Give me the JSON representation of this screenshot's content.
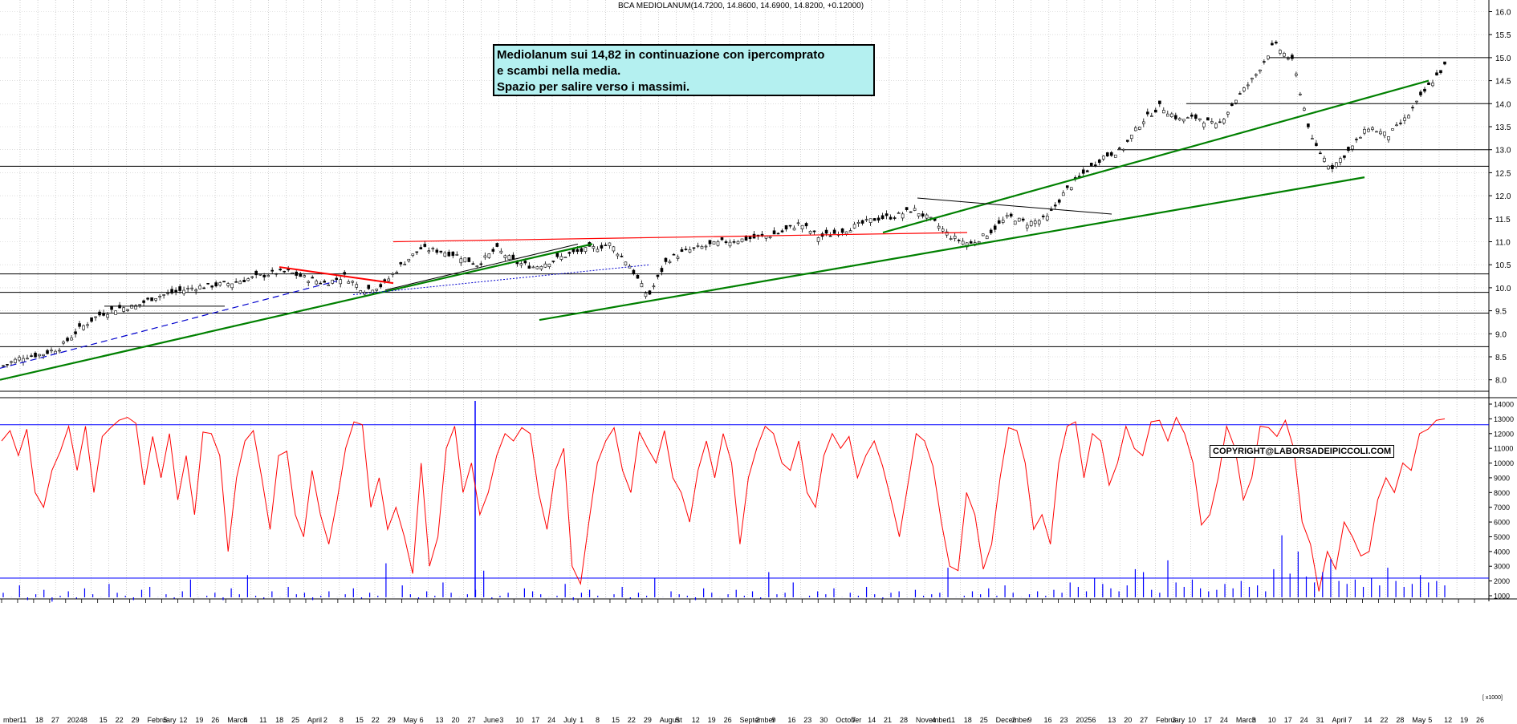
{
  "header": {
    "title": "BCA MEDIOLANUM(14.7200, 14.8600, 14.6900, 14.8200, +0.12000)"
  },
  "annotation": {
    "line1": "Mediolanum sui 14,82 in continuazione con ipercomprato",
    "line2": "e scambi nella media.",
    "line3": "Spazio per salire verso i massimi."
  },
  "copyright": "COPYRIGHT@LABORSADEIPICCOLI.COM",
  "colors": {
    "candle": "#000000",
    "trend_green": "#008000",
    "trend_red": "#ff0000",
    "trend_blue": "#0000cc",
    "oscillator": "#ff0000",
    "volume": "#0000ff",
    "grid": "#999999"
  },
  "chart_data": [
    {
      "type": "candlestick",
      "title": "BCA MEDIOLANUM",
      "ylim": [
        7.5,
        16.2
      ],
      "y_ticks": [
        "16.0",
        "15.5",
        "15.0",
        "14.5",
        "14.0",
        "13.5",
        "13.0",
        "12.5",
        "12.0",
        "11.5",
        "11.0",
        "10.5",
        "10.0",
        "9.5",
        "9.0",
        "8.5",
        "8.0"
      ],
      "last_bar": {
        "open": 14.72,
        "high": 14.86,
        "low": 14.69,
        "close": 14.82,
        "change": 0.12
      },
      "horizontal_levels": [
        15.0,
        14.0,
        13.0,
        12.64,
        10.3,
        9.9,
        9.45,
        8.72,
        7.75
      ],
      "weekly_closes": [
        8.3,
        8.5,
        8.55,
        8.7,
        9.1,
        9.4,
        9.55,
        9.6,
        9.8,
        9.9,
        10.0,
        10.05,
        10.1,
        10.2,
        10.3,
        10.35,
        10.2,
        10.1,
        10.25,
        9.95,
        10.05,
        10.5,
        10.85,
        10.8,
        10.7,
        10.5,
        10.85,
        10.55,
        10.45,
        10.6,
        10.75,
        10.85,
        10.95,
        10.5,
        9.8,
        10.6,
        10.8,
        10.9,
        11.0,
        11.05,
        11.1,
        11.2,
        11.4,
        11.1,
        11.2,
        11.35,
        11.5,
        11.55,
        11.7,
        11.45,
        11.1,
        10.95,
        11.2,
        11.55,
        11.4,
        11.5,
        12.1,
        12.5,
        12.85,
        13.0,
        13.6,
        13.95,
        13.65,
        13.7,
        13.5,
        14.1,
        14.6,
        15.3,
        14.9,
        13.2,
        12.6,
        13.0,
        13.5,
        13.3,
        13.7,
        14.3,
        14.82
      ],
      "trendlines": [
        {
          "color": "green",
          "from": [
            "Nov 2023",
            8.0
          ],
          "to": [
            "Aug 2024",
            10.95
          ]
        },
        {
          "color": "green",
          "from": [
            "Aug 2024",
            9.3
          ],
          "to": [
            "Apr 2025",
            12.4
          ]
        },
        {
          "color": "green",
          "from": [
            "Dec 2024",
            11.2
          ],
          "to": [
            "Apr 2025",
            14.5
          ]
        },
        {
          "color": "red",
          "from": [
            "May 2024",
            11.0
          ],
          "to": [
            "Dec 2024",
            11.2
          ]
        },
        {
          "color": "red",
          "from": [
            "Mar 2024",
            10.45
          ],
          "to": [
            "Apr 2024",
            10.1
          ]
        },
        {
          "color": "black",
          "from": [
            "Nov 2024",
            11.95
          ],
          "to": [
            "Dec 2024",
            11.6
          ]
        }
      ]
    },
    {
      "type": "line",
      "name": "oscillator",
      "y_ticks": [
        "14000",
        "13000",
        "12000",
        "11000",
        "10000",
        "9000",
        "8000",
        "7000",
        "6000",
        "5000",
        "4000",
        "3000",
        "2000",
        "1000"
      ],
      "ylim": [
        0,
        14000
      ],
      "levels": [
        12600,
        2200
      ],
      "values": [
        11500,
        12200,
        10500,
        12300,
        8000,
        7000,
        9500,
        10800,
        12500,
        9500,
        12500,
        8000,
        11800,
        12400,
        12900,
        13100,
        12700,
        8500,
        11800,
        9000,
        12000,
        7500,
        10500,
        6500,
        12100,
        12000,
        10500,
        4000,
        9000,
        11500,
        12200,
        9000,
        5500,
        10500,
        10800,
        6500,
        5000,
        9500,
        6500,
        4500,
        7500,
        11000,
        12800,
        12600,
        7000,
        9000,
        5500,
        7000,
        5000,
        2500,
        10000,
        3000,
        5000,
        11000,
        12500,
        8000,
        10000,
        6500,
        8000,
        10500,
        12000,
        11500,
        12400,
        12000,
        8000,
        5500,
        9500,
        11000,
        3000,
        1800,
        6000,
        10000,
        11500,
        12400,
        9500,
        8000,
        12100,
        11000,
        10000,
        12200,
        9000,
        8000,
        6000,
        9500,
        11500,
        9000,
        12000,
        10000,
        4500,
        9000,
        11000,
        12500,
        12000,
        10000,
        9500,
        11500,
        8000,
        7000,
        10500,
        12000,
        11000,
        11800,
        9000,
        10500,
        11500,
        9800,
        7500,
        5000,
        8500,
        12000,
        11500,
        9800,
        6000,
        3000,
        2700,
        8000,
        6500,
        2800,
        4500,
        9000,
        12400,
        12200,
        10000,
        5500,
        6500,
        4500,
        10000,
        12500,
        12800,
        9000,
        12000,
        11500,
        8500,
        10000,
        12500,
        11000,
        10500,
        12800,
        12900,
        11500,
        13100,
        12000,
        10000,
        5800,
        6500,
        9000,
        12500,
        11000,
        7500,
        9000,
        12500,
        12400,
        11800,
        12900,
        11000,
        6000,
        4500,
        1300,
        4000,
        2800,
        6000,
        5000,
        3700,
        4000,
        7500,
        9000,
        8000,
        10000,
        9500,
        12000,
        12300,
        12900,
        13000
      ]
    },
    {
      "type": "bar",
      "name": "volume",
      "ylim": [
        0,
        14000
      ],
      "values": [
        1200,
        900,
        1700,
        700,
        1100,
        1400,
        600,
        1000,
        1300,
        800,
        1500,
        1100,
        900,
        1800,
        1200,
        1000,
        700,
        1400,
        1600,
        900,
        1100,
        800,
        1300,
        2100,
        900,
        1000,
        1200,
        700,
        1500,
        1100,
        2400,
        1000,
        800,
        1300,
        900,
        1600,
        1100,
        1200,
        700,
        1000,
        1300,
        900,
        1100,
        1500,
        800,
        1200,
        1000,
        3200,
        900,
        1700,
        1100,
        800,
        1300,
        1000,
        1900,
        1200,
        900,
        1100,
        1400,
        2700,
        800,
        1000,
        1200,
        900,
        1500,
        1300,
        1100,
        900,
        1000,
        1800,
        700,
        1200,
        1400,
        1000,
        900,
        1100,
        1600,
        800,
        1200,
        1000,
        2200,
        900,
        1300,
        1100,
        1000,
        700,
        1500,
        1200,
        900,
        1100,
        1400,
        1000,
        1300,
        800,
        2600,
        1100,
        1200,
        1900,
        900,
        1000,
        1300,
        1100,
        1500,
        900,
        1200,
        1000,
        1600,
        1100,
        800,
        1200,
        1300,
        900,
        1400,
        1000,
        1100,
        1200,
        2900,
        900,
        1000,
        1300,
        1100,
        1500,
        1000,
        1700,
        1200,
        900,
        1100,
        1300,
        1000,
        1400,
        1200,
        1900,
        1600,
        1300,
        2200,
        1800,
        1500,
        1300,
        1700,
        2800,
        2600,
        1400,
        1200,
        3400,
        1900,
        1600,
        2100,
        1500,
        1300,
        1400,
        1800,
        1500,
        2000,
        1600,
        1700,
        1300,
        2800,
        5100,
        2500,
        4000,
        2300,
        1900,
        2600,
        3500,
        2000,
        1800,
        2100,
        1600,
        2200,
        1700,
        2900,
        2000,
        1600,
        1800,
        2400,
        1900,
        2000,
        1700
      ]
    }
  ],
  "x_axis": {
    "labels": [
      "mber",
      "11",
      "18",
      "27",
      "2024",
      "8",
      "15",
      "22",
      "29",
      "February",
      "5",
      "12",
      "19",
      "26",
      "March",
      "4",
      "11",
      "18",
      "25",
      "April",
      "2",
      "8",
      "15",
      "22",
      "29",
      "May",
      "6",
      "13",
      "20",
      "27",
      "June",
      "3",
      "10",
      "17",
      "24",
      "July",
      "1",
      "8",
      "15",
      "22",
      "29",
      "August",
      "5",
      "12",
      "19",
      "26",
      "September",
      "2",
      "9",
      "16",
      "23",
      "30",
      "October",
      "7",
      "14",
      "21",
      "28",
      "November",
      "4",
      "11",
      "18",
      "25",
      "December",
      "2",
      "9",
      "16",
      "23",
      "2025",
      "6",
      "13",
      "20",
      "27",
      "February",
      "3",
      "10",
      "17",
      "24",
      "March",
      "3",
      "10",
      "17",
      "24",
      "31",
      "April",
      "7",
      "14",
      "22",
      "28",
      "May",
      "5",
      "12",
      "19",
      "26"
    ]
  },
  "right_badge": "[ x1000]"
}
